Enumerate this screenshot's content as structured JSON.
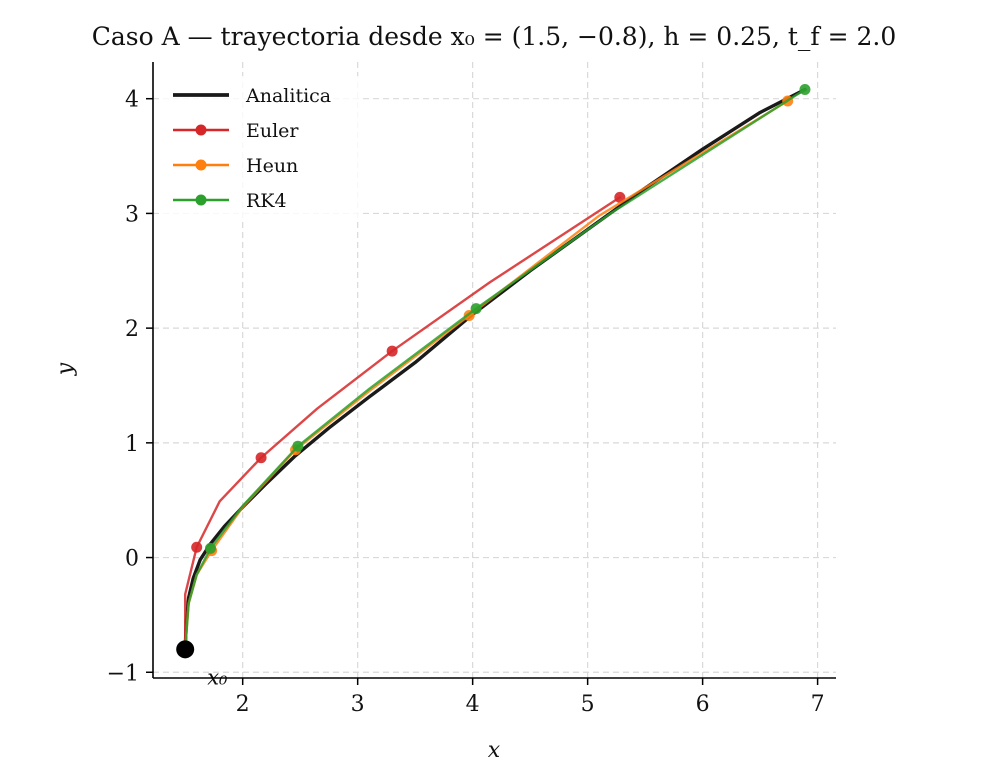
{
  "chart_data": {
    "type": "line",
    "title": "Caso A — trayectoria desde x₀ = (1.5, −0.8), h = 0.25, t_f = 2.0",
    "xlabel": "x",
    "ylabel": "y",
    "xlim": [
      1.22,
      7.16
    ],
    "ylim": [
      -1.05,
      4.32
    ],
    "xticks": [
      2,
      3,
      4,
      5,
      6,
      7
    ],
    "yticks": [
      -1,
      0,
      1,
      2,
      3,
      4
    ],
    "xtick_labels": [
      "2",
      "3",
      "4",
      "5",
      "6",
      "7"
    ],
    "ytick_labels": [
      "−1",
      "0",
      "1",
      "2",
      "3",
      "4"
    ],
    "grid": true,
    "legend_position": "top-left",
    "series": [
      {
        "name": "Analitica",
        "color": "#1a1a1a",
        "markers": false,
        "x": [
          1.5,
          1.51,
          1.53,
          1.57,
          1.63,
          1.72,
          1.84,
          2.0,
          2.2,
          2.45,
          2.75,
          3.1,
          3.5,
          4.0,
          4.5,
          5.0,
          5.5,
          6.0,
          6.5,
          6.89
        ],
        "y": [
          -0.8,
          -0.55,
          -0.35,
          -0.18,
          -0.02,
          0.12,
          0.27,
          0.44,
          0.64,
          0.88,
          1.13,
          1.4,
          1.7,
          2.12,
          2.5,
          2.86,
          3.22,
          3.56,
          3.88,
          4.08
        ]
      },
      {
        "name": "Euler",
        "color": "#d62728",
        "markers": true,
        "x": [
          1.5,
          1.5,
          1.6,
          1.8,
          2.16,
          2.65,
          3.3,
          4.15,
          5.28
        ],
        "y": [
          -0.8,
          -0.32,
          0.09,
          0.49,
          0.87,
          1.3,
          1.8,
          2.4,
          3.14
        ],
        "marker_x": [
          1.6,
          2.16,
          3.3,
          5.28
        ],
        "marker_y": [
          0.09,
          0.87,
          1.8,
          3.14
        ]
      },
      {
        "name": "Heun",
        "color": "#ff7f0e",
        "markers": true,
        "x": [
          1.5,
          1.53,
          1.6,
          1.73,
          2.0,
          2.46,
          3.1,
          3.97,
          5.1,
          6.74
        ],
        "y": [
          -0.8,
          -0.4,
          -0.15,
          0.06,
          0.44,
          0.94,
          1.45,
          2.11,
          2.98,
          3.98
        ],
        "marker_x": [
          1.73,
          2.46,
          3.97,
          6.74
        ],
        "marker_y": [
          0.06,
          0.94,
          2.11,
          3.98
        ]
      },
      {
        "name": "RK4",
        "color": "#2ca02c",
        "markers": true,
        "x": [
          1.5,
          1.53,
          1.6,
          1.72,
          2.0,
          2.48,
          3.1,
          4.03,
          5.2,
          6.89
        ],
        "y": [
          -0.8,
          -0.4,
          -0.15,
          0.08,
          0.45,
          0.97,
          1.47,
          2.17,
          3.0,
          4.08
        ],
        "marker_x": [
          1.72,
          2.48,
          4.03,
          6.89
        ],
        "marker_y": [
          0.08,
          0.97,
          2.17,
          4.08
        ]
      }
    ],
    "start_point": {
      "x": 1.5,
      "y": -0.8,
      "color": "#000000"
    },
    "start_label": "x₀"
  }
}
